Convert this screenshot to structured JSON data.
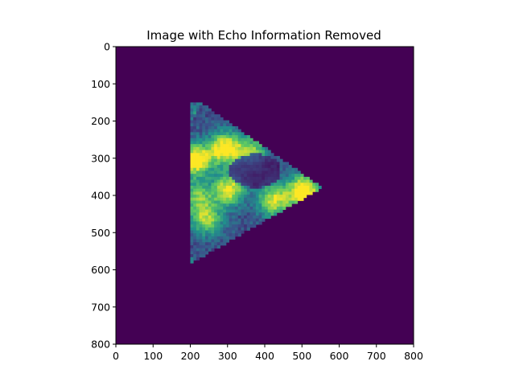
{
  "chart_data": {
    "type": "heatmap",
    "title": "Image with Echo Information Removed",
    "xlabel": "",
    "ylabel": "",
    "xlim": [
      0,
      800
    ],
    "ylim": [
      800,
      0
    ],
    "xticks": [
      "0",
      "100",
      "200",
      "300",
      "400",
      "500",
      "600",
      "700",
      "800"
    ],
    "yticks": [
      "0",
      "100",
      "200",
      "300",
      "400",
      "500",
      "600",
      "700",
      "800"
    ],
    "colormap": "viridis",
    "background_color": "#440154",
    "grid": false,
    "image_content": {
      "description": "ultrasound sector (fan) image on uniform background",
      "apex": [
        550,
        375
      ],
      "radius": 420,
      "angle_range_deg": [
        150,
        215
      ],
      "bright_regions": [
        {
          "x": 210,
          "y": 300,
          "v": 0.9
        },
        {
          "x": 290,
          "y": 270,
          "v": 0.85
        },
        {
          "x": 360,
          "y": 280,
          "v": 0.55
        },
        {
          "x": 300,
          "y": 380,
          "v": 0.75
        },
        {
          "x": 420,
          "y": 410,
          "v": 0.7
        },
        {
          "x": 500,
          "y": 385,
          "v": 0.95
        },
        {
          "x": 240,
          "y": 460,
          "v": 0.6
        },
        {
          "x": 215,
          "y": 400,
          "v": 0.5
        }
      ]
    }
  }
}
